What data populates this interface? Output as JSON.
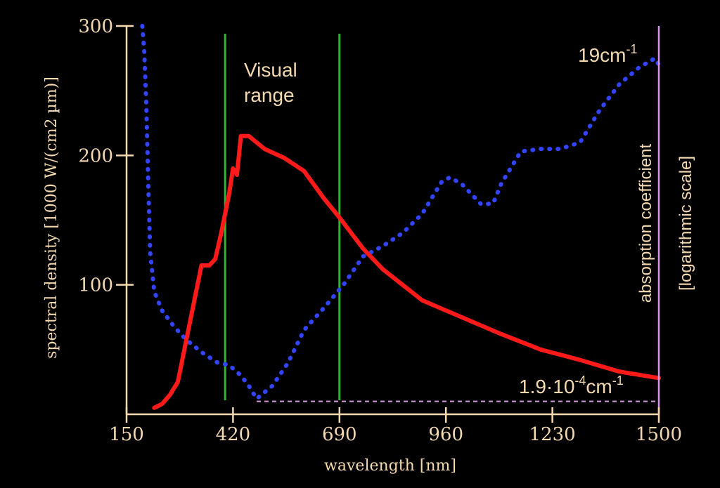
{
  "chart_data": {
    "type": "line",
    "title": "",
    "xlabel": "wavelength [nm]",
    "ylabel": "spectral density [1000 W/(cm2 µm)]",
    "ylabel_right_line1": "absorption coefficient",
    "ylabel_right_line2": "[logarithmic scale]",
    "xlim": [
      150,
      1500
    ],
    "ylim": [
      0,
      300
    ],
    "x_ticks": [
      150,
      420,
      690,
      960,
      1230,
      1500
    ],
    "y_ticks": [
      100,
      200,
      300
    ],
    "x_tick_labels": [
      "150",
      "420",
      "690",
      "960",
      "1230",
      "1500"
    ],
    "y_tick_labels": [
      "100",
      "200",
      "300"
    ],
    "visual_range": [
      400,
      690
    ],
    "visual_range_label": "Visual\nrange",
    "right_axis_top_label": "19cm",
    "right_axis_top_label_exp": "-1",
    "right_axis_bottom_label": "1.9·10",
    "right_axis_bottom_label_exp": "-4",
    "right_axis_bottom_label_unit": "cm",
    "right_axis_bottom_label_unit_exp": "-1",
    "series": [
      {
        "color": "#ff1a1a",
        "style": "solid",
        "x": [
          220,
          240,
          260,
          280,
          300,
          320,
          340,
          360,
          375,
          390,
          410,
          420,
          430,
          440,
          460,
          480,
          500,
          550,
          600,
          650,
          690,
          750,
          800,
          900,
          1000,
          1100,
          1200,
          1300,
          1400,
          1500
        ],
        "y": [
          5,
          8,
          15,
          25,
          55,
          85,
          115,
          115,
          120,
          140,
          170,
          190,
          185,
          215,
          215,
          210,
          205,
          198,
          188,
          167,
          152,
          128,
          112,
          88,
          75,
          62,
          50,
          42,
          33,
          28
        ]
      },
      {
        "color": "#3344ff",
        "style": "dotted",
        "x": [
          190,
          195,
          200,
          205,
          210,
          220,
          240,
          270,
          300,
          340,
          380,
          410,
          440,
          460,
          480,
          520,
          560,
          600,
          650,
          700,
          750,
          800,
          850,
          900,
          950,
          970,
          1000,
          1050,
          1080,
          1100,
          1150,
          1200,
          1250,
          1300,
          1350,
          1400,
          1450,
          1490,
          1500
        ],
        "y": [
          300,
          280,
          240,
          180,
          125,
          95,
          80,
          68,
          58,
          48,
          40,
          38,
          30,
          22,
          12,
          22,
          40,
          65,
          82,
          100,
          122,
          130,
          140,
          155,
          180,
          183,
          178,
          162,
          163,
          178,
          203,
          205,
          205,
          210,
          235,
          255,
          268,
          275,
          270
        ]
      },
      {
        "color": "#d49be0",
        "style": "dashed",
        "x": [
          480,
          1500
        ],
        "y": [
          10,
          10
        ]
      }
    ]
  }
}
